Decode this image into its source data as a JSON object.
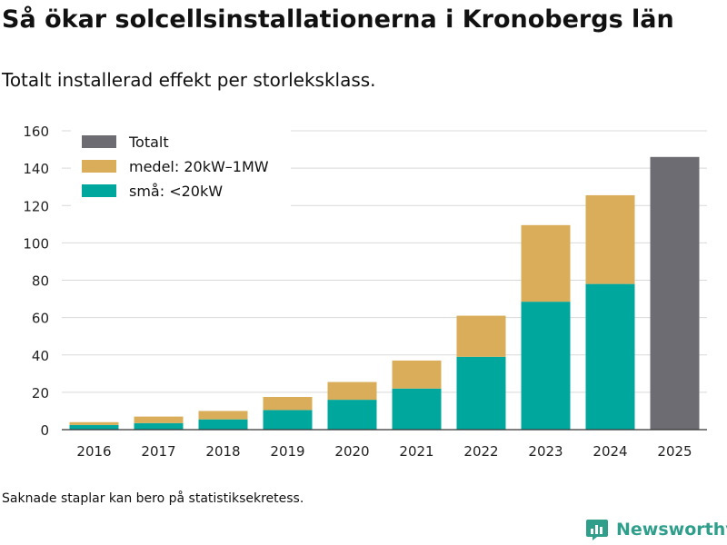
{
  "title": "Så ökar solcellsinstallationerna i Kronobergs län",
  "subtitle": "Totalt installerad effekt per storleksklass.",
  "footnote": "Saknade staplar kan bero på statistiksekretess.",
  "brand": {
    "name": "Newsworthy",
    "logo_icon": "bar-chart-logo-icon",
    "color": "#2f9f8c"
  },
  "colors": {
    "small": "#00a79d",
    "medium": "#d9ad59",
    "total": "#6d6c72",
    "grid": "#d9d9d9",
    "axis": "#333333"
  },
  "chart_data": {
    "type": "bar",
    "stacked": true,
    "title": "Så ökar solcellsinstallationerna i Kronobergs län",
    "subtitle": "Totalt installerad effekt per storleksklass.",
    "xlabel": "",
    "ylabel": "",
    "ylim": [
      0,
      160
    ],
    "yticks": [
      0,
      20,
      40,
      60,
      80,
      100,
      120,
      140,
      160
    ],
    "grid": true,
    "legend_position": "top-left",
    "categories": [
      "2016",
      "2017",
      "2018",
      "2019",
      "2020",
      "2021",
      "2022",
      "2023",
      "2024",
      "2025"
    ],
    "series": [
      {
        "name": "små: <20kW",
        "color": "#00a79d",
        "values": [
          2.5,
          3.5,
          5.5,
          10.5,
          16,
          22,
          39,
          68.5,
          78,
          null
        ]
      },
      {
        "name": "medel: 20kW–1MW",
        "color": "#d9ad59",
        "values": [
          1.5,
          3.5,
          4.5,
          7,
          9.5,
          15,
          22,
          41,
          47.5,
          null
        ]
      },
      {
        "name": "Totalt",
        "color": "#6d6c72",
        "values": [
          null,
          null,
          null,
          null,
          null,
          null,
          null,
          null,
          null,
          146
        ]
      }
    ],
    "legend": [
      {
        "name": "Totalt",
        "color": "#6d6c72"
      },
      {
        "name": "medel: 20kW–1MW",
        "color": "#d9ad59"
      },
      {
        "name": "små: <20kW",
        "color": "#00a79d"
      }
    ]
  }
}
